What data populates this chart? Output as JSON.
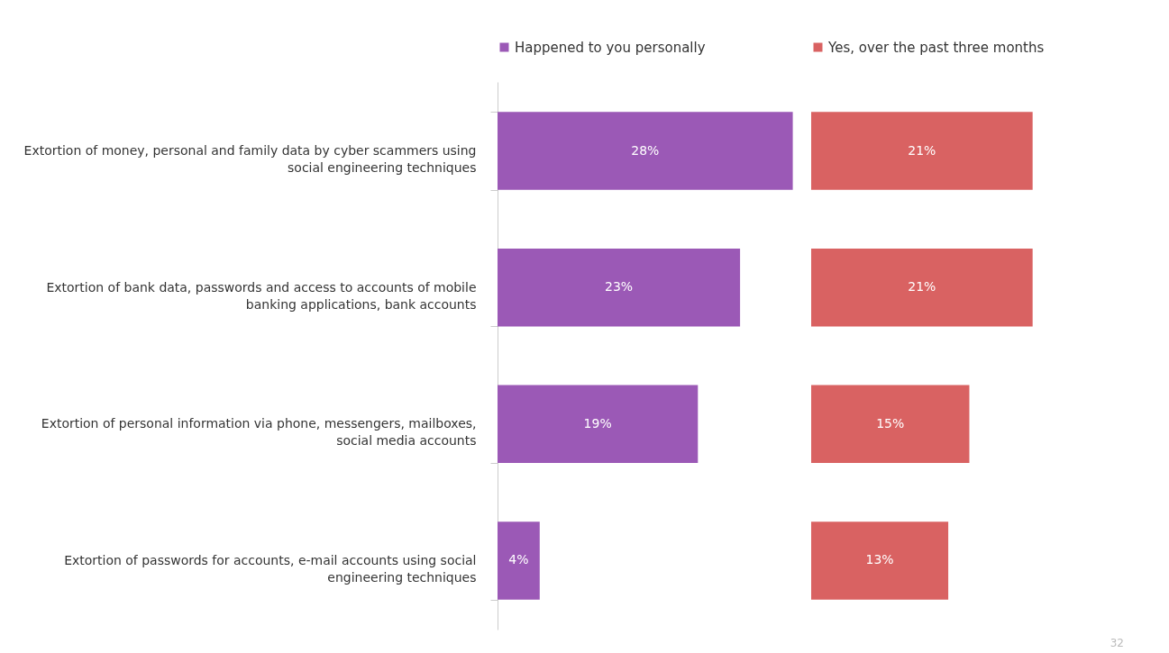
{
  "chart_data": [
    {
      "type": "bar",
      "orientation": "horizontal",
      "legend": "top",
      "categories": [
        "Extortion of money, personal and family data by cyber scammers using social engineering techniques",
        "Extortion of bank data, passwords and access to accounts of mobile banking applications, bank accounts",
        "Extortion of personal information via phone, messengers, mailboxes, social media accounts",
        "Extortion of passwords for accounts, e-mail accounts using social engineering techniques"
      ],
      "series": [
        {
          "name": "Happened to you personally",
          "color": "#9b59b6",
          "values": [
            28,
            23,
            19,
            4
          ],
          "value_labels": [
            "28%",
            "23%",
            "19%",
            "4%"
          ]
        }
      ]
    },
    {
      "type": "bar",
      "orientation": "horizontal",
      "legend": "top",
      "tick_labels": false,
      "categories": [
        null,
        null,
        null,
        null
      ],
      "series": [
        {
          "name": "Yes, over the past three months",
          "color": "#d96262",
          "values": [
            21,
            21,
            15,
            13
          ],
          "value_labels": [
            "21%",
            "21%",
            "15%",
            "13%"
          ]
        }
      ],
      "annotations": [
        "32"
      ]
    }
  ]
}
